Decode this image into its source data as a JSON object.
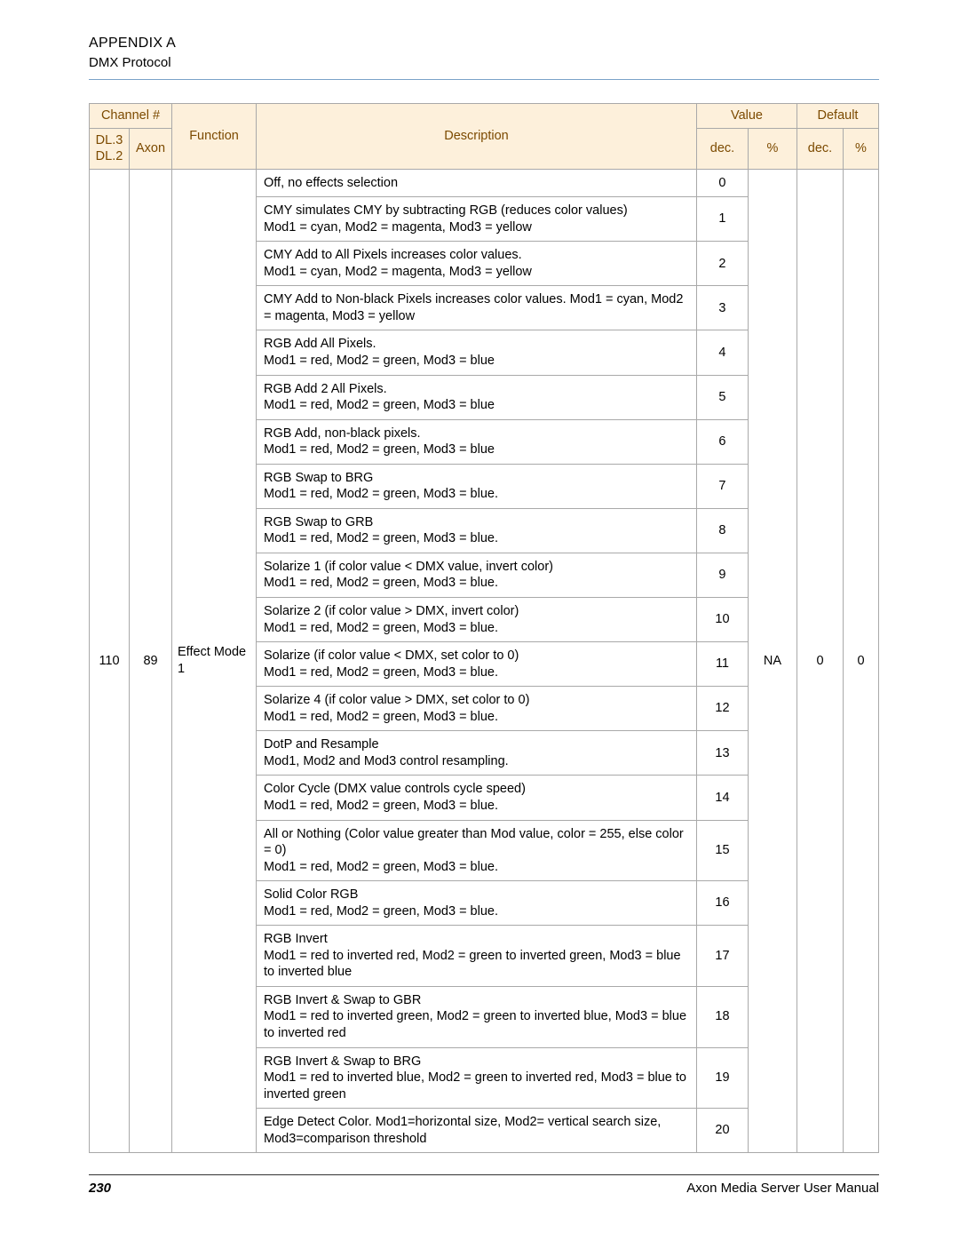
{
  "header": {
    "title": "APPENDIX A",
    "subtitle": "DMX Protocol"
  },
  "table": {
    "head": {
      "channel": "Channel #",
      "dl": "DL.3 DL.2",
      "axon": "Axon",
      "function": "Function",
      "description": "Description",
      "value": "Value",
      "value_dec": "dec.",
      "value_pct": "%",
      "default": "Default",
      "default_dec": "dec.",
      "default_pct": "%"
    },
    "group": {
      "dl": "110",
      "axon": "89",
      "function": "Effect Mode 1",
      "value_pct": "NA",
      "default_dec": "0",
      "default_pct": "0"
    },
    "rows": [
      {
        "desc": "Off, no effects selection",
        "dec": "0"
      },
      {
        "desc": "CMY simulates CMY by subtracting RGB (reduces color values)\nMod1 = cyan, Mod2 = magenta, Mod3 = yellow",
        "dec": "1"
      },
      {
        "desc": "CMY Add to All Pixels increases color values.\nMod1 = cyan, Mod2 = magenta, Mod3 = yellow",
        "dec": "2"
      },
      {
        "desc": "CMY Add to Non-black Pixels increases color values. Mod1 = cyan, Mod2 = magenta, Mod3 = yellow",
        "dec": "3"
      },
      {
        "desc": "RGB Add All Pixels.\nMod1 = red, Mod2 = green, Mod3 = blue",
        "dec": "4"
      },
      {
        "desc": "RGB Add 2 All Pixels.\nMod1 = red, Mod2 = green, Mod3 = blue",
        "dec": "5"
      },
      {
        "desc": "RGB Add, non-black pixels.\nMod1 = red, Mod2 = green, Mod3 = blue",
        "dec": "6"
      },
      {
        "desc": "RGB Swap to BRG\nMod1 = red, Mod2 = green, Mod3 = blue.",
        "dec": "7"
      },
      {
        "desc": "RGB Swap to GRB\nMod1 = red, Mod2 = green, Mod3  = blue.",
        "dec": "8"
      },
      {
        "desc": "Solarize 1 (if color value < DMX value, invert color)\nMod1 = red, Mod2 = green, Mod3 = blue.",
        "dec": "9"
      },
      {
        "desc": "Solarize 2 (if color value > DMX, invert color)\nMod1 = red, Mod2 = green, Mod3 = blue.",
        "dec": "10"
      },
      {
        "desc": "Solarize (if color value < DMX, set color to 0)\nMod1 = red, Mod2 = green, Mod3 = blue.",
        "dec": "11"
      },
      {
        "desc": "Solarize 4 (if color value > DMX, set color to 0)\nMod1 = red, Mod2 = green, Mod3 = blue.",
        "dec": "12"
      },
      {
        "desc": "DotP and Resample\nMod1, Mod2 and Mod3 control resampling.",
        "dec": "13"
      },
      {
        "desc": "Color Cycle (DMX value controls cycle speed)\nMod1 = red, Mod2 = green, Mod3 = blue.",
        "dec": "14"
      },
      {
        "desc": "All or Nothing (Color value greater than Mod value, color = 255, else color = 0)\nMod1 = red, Mod2 = green, Mod3 = blue.",
        "dec": "15"
      },
      {
        "desc": "Solid Color RGB\nMod1 = red, Mod2 = green, Mod3 = blue.",
        "dec": "16"
      },
      {
        "desc": "RGB Invert\nMod1 = red to inverted red, Mod2 = green to inverted green, Mod3 = blue to inverted blue",
        "dec": "17"
      },
      {
        "desc": "RGB Invert & Swap to GBR\nMod1 = red to inverted green, Mod2 = green to inverted blue, Mod3 = blue to inverted red",
        "dec": "18"
      },
      {
        "desc": "RGB Invert & Swap to BRG\nMod1 = red to inverted blue, Mod2 = green to inverted red, Mod3 = blue to inverted green",
        "dec": "19"
      },
      {
        "desc": "Edge Detect Color. Mod1=horizontal size, Mod2= vertical search size, Mod3=comparison threshold",
        "dec": "20"
      }
    ]
  },
  "footer": {
    "page": "230",
    "manual": "Axon Media Server User Manual"
  },
  "style": {
    "header_border": "#7aa2c8",
    "cell_border": "#a9a9a9",
    "th_bg": "#fdf0db",
    "th_color": "#7c4a00",
    "body_font_size": 14.5
  }
}
